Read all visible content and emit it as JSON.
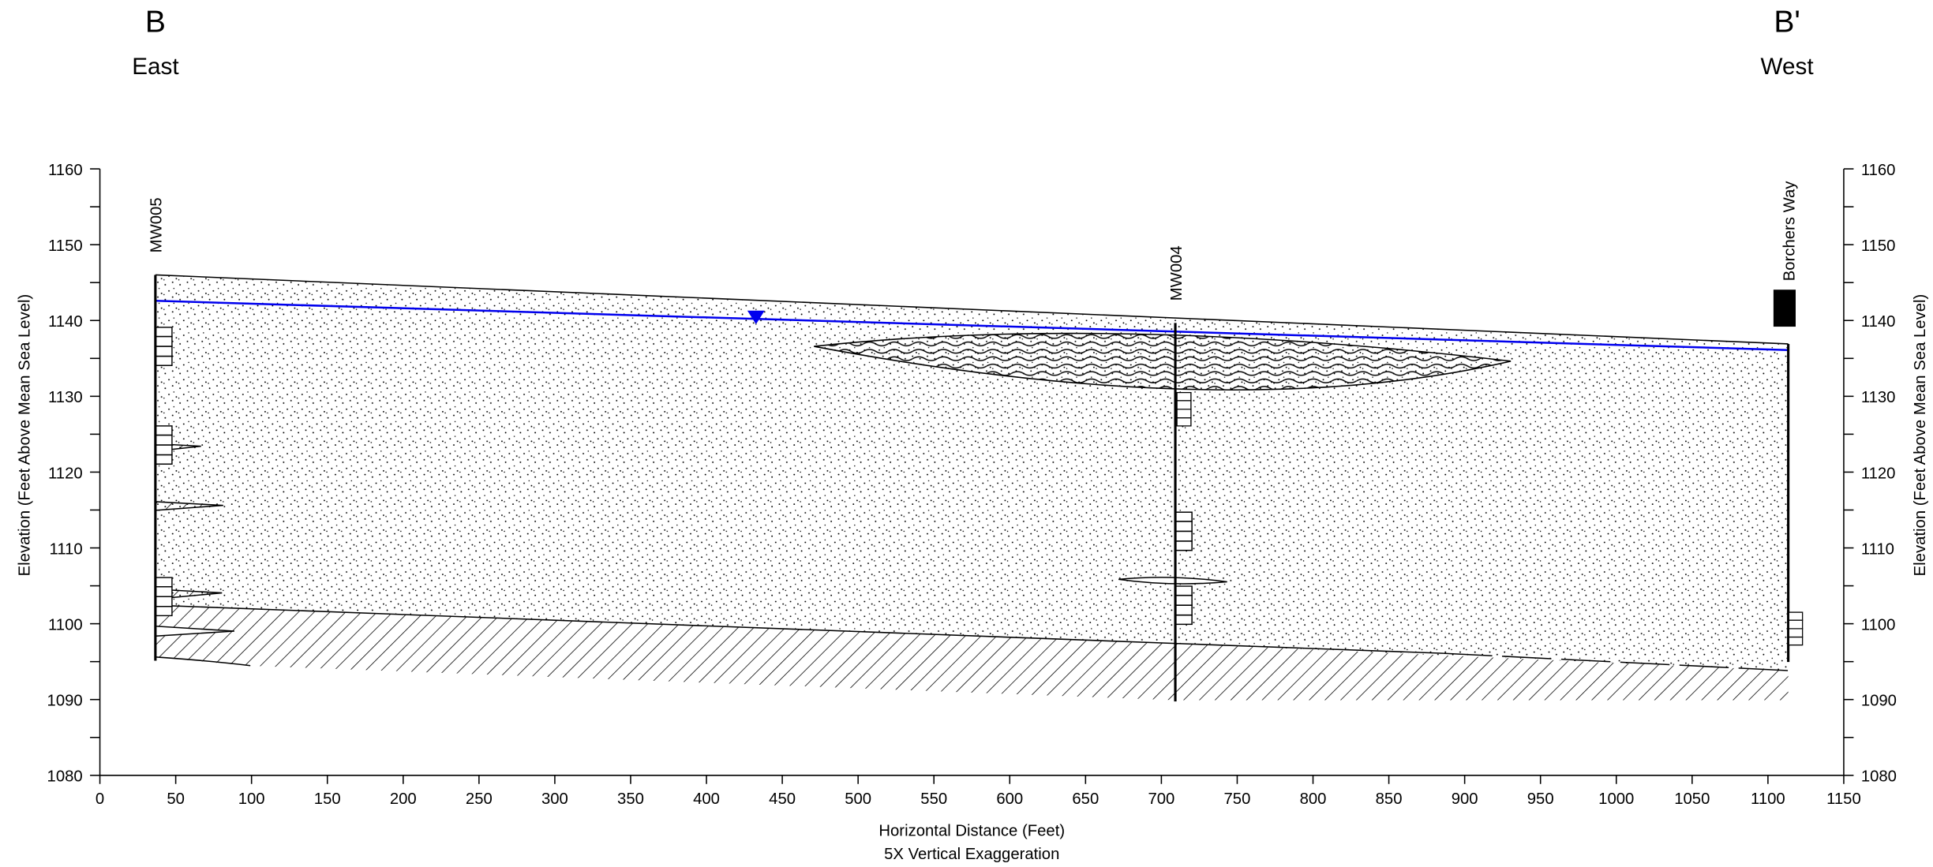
{
  "header": {
    "left_label": "B",
    "left_direction": "East",
    "right_label": "B'",
    "right_direction": "West"
  },
  "axes": {
    "xlim": [
      0,
      1150
    ],
    "xticks": [
      0,
      50,
      100,
      150,
      200,
      250,
      300,
      350,
      400,
      450,
      500,
      550,
      600,
      650,
      700,
      750,
      800,
      850,
      900,
      950,
      1000,
      1050,
      1100,
      1150
    ],
    "ylim": [
      1080,
      1160
    ],
    "yticks": [
      1080,
      1090,
      1100,
      1110,
      1120,
      1130,
      1140,
      1150,
      1160
    ],
    "yminorticks": [
      1085,
      1095,
      1105,
      1115,
      1125,
      1135,
      1145,
      1155
    ],
    "xlabel": "Horizontal Distance (Feet)",
    "note": "5X Vertical Exaggeration",
    "ylabel": "Elevation (Feet Above Mean Sea Level)",
    "y2label": "Elevation (Feet Above Mean Sea Level)"
  },
  "wells": [
    {
      "label": "MW005"
    },
    {
      "label": "MW004"
    },
    {
      "label": "Borchers Way"
    }
  ]
}
